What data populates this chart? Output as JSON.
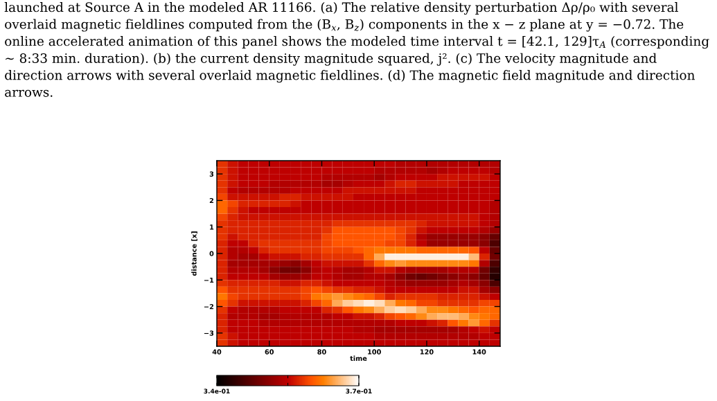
{
  "chart_data": {
    "type": "heatmap",
    "x": [
      42,
      46,
      50,
      54,
      58,
      62,
      66,
      70,
      74,
      78,
      82,
      86,
      90,
      94,
      98,
      102,
      106,
      110,
      114,
      118,
      122,
      126,
      130,
      134,
      138,
      142,
      146
    ],
    "y": [
      3.375,
      3.125,
      2.875,
      2.625,
      2.375,
      2.125,
      1.875,
      1.625,
      1.375,
      1.125,
      0.875,
      0.625,
      0.375,
      0.125,
      -0.125,
      -0.375,
      -0.625,
      -0.875,
      -1.125,
      -1.375,
      -1.625,
      -1.875,
      -2.125,
      -2.375,
      -2.625,
      -2.875,
      -3.125,
      -3.375
    ],
    "cells": [
      [
        0.358,
        0.356,
        0.355,
        0.355,
        0.355,
        0.355,
        0.355,
        0.355,
        0.355,
        0.355,
        0.355,
        0.355,
        0.355,
        0.355,
        0.355,
        0.355,
        0.355,
        0.354,
        0.354,
        0.354,
        0.354,
        0.354,
        0.354,
        0.354,
        0.354,
        0.354,
        0.354
      ],
      [
        0.358,
        0.356,
        0.355,
        0.355,
        0.355,
        0.355,
        0.355,
        0.355,
        0.355,
        0.355,
        0.355,
        0.355,
        0.355,
        0.355,
        0.355,
        0.354,
        0.354,
        0.354,
        0.354,
        0.354,
        0.353,
        0.354,
        0.355,
        0.355,
        0.355,
        0.355,
        0.354
      ],
      [
        0.358,
        0.356,
        0.355,
        0.355,
        0.355,
        0.355,
        0.355,
        0.355,
        0.355,
        0.355,
        0.354,
        0.354,
        0.354,
        0.354,
        0.354,
        0.353,
        0.354,
        0.355,
        0.355,
        0.355,
        0.355,
        0.356,
        0.356,
        0.356,
        0.356,
        0.356,
        0.355
      ],
      [
        0.358,
        0.356,
        0.355,
        0.355,
        0.355,
        0.354,
        0.354,
        0.354,
        0.354,
        0.354,
        0.353,
        0.353,
        0.354,
        0.355,
        0.355,
        0.355,
        0.356,
        0.357,
        0.357,
        0.356,
        0.356,
        0.356,
        0.356,
        0.355,
        0.355,
        0.355,
        0.355
      ],
      [
        0.358,
        0.355,
        0.354,
        0.354,
        0.354,
        0.354,
        0.354,
        0.355,
        0.355,
        0.355,
        0.355,
        0.355,
        0.356,
        0.356,
        0.356,
        0.356,
        0.356,
        0.356,
        0.356,
        0.355,
        0.355,
        0.355,
        0.355,
        0.355,
        0.355,
        0.355,
        0.355
      ],
      [
        0.359,
        0.356,
        0.356,
        0.356,
        0.356,
        0.356,
        0.357,
        0.357,
        0.356,
        0.356,
        0.356,
        0.356,
        0.356,
        0.355,
        0.355,
        0.355,
        0.355,
        0.355,
        0.355,
        0.355,
        0.355,
        0.355,
        0.355,
        0.355,
        0.355,
        0.355,
        0.355
      ],
      [
        0.361,
        0.359,
        0.357,
        0.357,
        0.357,
        0.357,
        0.357,
        0.356,
        0.355,
        0.355,
        0.355,
        0.355,
        0.355,
        0.355,
        0.355,
        0.355,
        0.355,
        0.355,
        0.355,
        0.355,
        0.355,
        0.355,
        0.355,
        0.355,
        0.355,
        0.355,
        0.354
      ],
      [
        0.361,
        0.358,
        0.356,
        0.355,
        0.355,
        0.355,
        0.355,
        0.355,
        0.355,
        0.355,
        0.355,
        0.355,
        0.355,
        0.355,
        0.355,
        0.355,
        0.355,
        0.355,
        0.355,
        0.355,
        0.355,
        0.355,
        0.355,
        0.355,
        0.355,
        0.355,
        0.354
      ],
      [
        0.359,
        0.357,
        0.356,
        0.356,
        0.356,
        0.356,
        0.356,
        0.356,
        0.356,
        0.356,
        0.356,
        0.356,
        0.356,
        0.356,
        0.356,
        0.356,
        0.356,
        0.356,
        0.356,
        0.356,
        0.356,
        0.356,
        0.356,
        0.356,
        0.356,
        0.355,
        0.354
      ],
      [
        0.358,
        0.357,
        0.357,
        0.357,
        0.357,
        0.357,
        0.357,
        0.357,
        0.357,
        0.357,
        0.357,
        0.358,
        0.358,
        0.358,
        0.358,
        0.358,
        0.358,
        0.358,
        0.358,
        0.357,
        0.356,
        0.356,
        0.356,
        0.356,
        0.356,
        0.355,
        0.354
      ],
      [
        0.358,
        0.357,
        0.357,
        0.357,
        0.357,
        0.357,
        0.357,
        0.357,
        0.357,
        0.357,
        0.358,
        0.36,
        0.36,
        0.36,
        0.36,
        0.36,
        0.36,
        0.359,
        0.358,
        0.356,
        0.355,
        0.355,
        0.355,
        0.355,
        0.355,
        0.354,
        0.352
      ],
      [
        0.358,
        0.356,
        0.357,
        0.357,
        0.357,
        0.357,
        0.357,
        0.357,
        0.357,
        0.357,
        0.359,
        0.36,
        0.36,
        0.36,
        0.36,
        0.36,
        0.36,
        0.359,
        0.357,
        0.354,
        0.352,
        0.352,
        0.352,
        0.352,
        0.352,
        0.351,
        0.348
      ],
      [
        0.357,
        0.355,
        0.355,
        0.357,
        0.358,
        0.358,
        0.358,
        0.358,
        0.358,
        0.358,
        0.359,
        0.36,
        0.36,
        0.36,
        0.36,
        0.36,
        0.359,
        0.359,
        0.357,
        0.355,
        0.352,
        0.352,
        0.352,
        0.352,
        0.352,
        0.351,
        0.346
      ],
      [
        0.357,
        0.354,
        0.354,
        0.355,
        0.357,
        0.358,
        0.358,
        0.358,
        0.358,
        0.358,
        0.359,
        0.359,
        0.359,
        0.36,
        0.361,
        0.362,
        0.362,
        0.362,
        0.362,
        0.361,
        0.361,
        0.361,
        0.361,
        0.361,
        0.36,
        0.355,
        0.348
      ],
      [
        0.357,
        0.354,
        0.353,
        0.353,
        0.355,
        0.356,
        0.356,
        0.356,
        0.357,
        0.357,
        0.358,
        0.358,
        0.358,
        0.358,
        0.361,
        0.365,
        0.369,
        0.369,
        0.369,
        0.369,
        0.369,
        0.369,
        0.369,
        0.369,
        0.366,
        0.357,
        0.349
      ],
      [
        0.357,
        0.353,
        0.353,
        0.353,
        0.353,
        0.353,
        0.352,
        0.351,
        0.353,
        0.355,
        0.356,
        0.356,
        0.356,
        0.356,
        0.358,
        0.361,
        0.363,
        0.364,
        0.363,
        0.363,
        0.363,
        0.363,
        0.363,
        0.363,
        0.362,
        0.354,
        0.346
      ],
      [
        0.357,
        0.354,
        0.354,
        0.354,
        0.353,
        0.351,
        0.349,
        0.349,
        0.351,
        0.354,
        0.355,
        0.354,
        0.353,
        0.353,
        0.354,
        0.356,
        0.356,
        0.354,
        0.353,
        0.353,
        0.353,
        0.353,
        0.354,
        0.354,
        0.354,
        0.349,
        0.344
      ],
      [
        0.357,
        0.355,
        0.355,
        0.355,
        0.355,
        0.353,
        0.352,
        0.352,
        0.353,
        0.355,
        0.355,
        0.354,
        0.353,
        0.353,
        0.354,
        0.354,
        0.353,
        0.351,
        0.349,
        0.348,
        0.349,
        0.35,
        0.351,
        0.352,
        0.351,
        0.348,
        0.343
      ],
      [
        0.358,
        0.357,
        0.357,
        0.357,
        0.357,
        0.357,
        0.356,
        0.356,
        0.357,
        0.357,
        0.356,
        0.355,
        0.355,
        0.355,
        0.355,
        0.355,
        0.354,
        0.353,
        0.352,
        0.352,
        0.352,
        0.352,
        0.353,
        0.354,
        0.353,
        0.351,
        0.346
      ],
      [
        0.36,
        0.358,
        0.358,
        0.358,
        0.358,
        0.358,
        0.358,
        0.358,
        0.359,
        0.36,
        0.359,
        0.358,
        0.358,
        0.357,
        0.357,
        0.356,
        0.355,
        0.355,
        0.355,
        0.355,
        0.355,
        0.355,
        0.355,
        0.356,
        0.356,
        0.353,
        0.351
      ],
      [
        0.362,
        0.359,
        0.358,
        0.358,
        0.358,
        0.358,
        0.358,
        0.358,
        0.359,
        0.362,
        0.363,
        0.364,
        0.363,
        0.362,
        0.361,
        0.359,
        0.357,
        0.358,
        0.358,
        0.358,
        0.358,
        0.357,
        0.357,
        0.357,
        0.357,
        0.356,
        0.355
      ],
      [
        0.36,
        0.358,
        0.356,
        0.356,
        0.356,
        0.356,
        0.356,
        0.356,
        0.357,
        0.359,
        0.361,
        0.365,
        0.367,
        0.368,
        0.369,
        0.368,
        0.365,
        0.362,
        0.361,
        0.359,
        0.359,
        0.358,
        0.358,
        0.358,
        0.358,
        0.359,
        0.359
      ],
      [
        0.358,
        0.355,
        0.354,
        0.354,
        0.354,
        0.354,
        0.355,
        0.355,
        0.355,
        0.355,
        0.357,
        0.358,
        0.36,
        0.362,
        0.363,
        0.365,
        0.367,
        0.368,
        0.367,
        0.365,
        0.363,
        0.363,
        0.362,
        0.361,
        0.36,
        0.361,
        0.361
      ],
      [
        0.357,
        0.354,
        0.354,
        0.354,
        0.353,
        0.353,
        0.354,
        0.354,
        0.354,
        0.354,
        0.354,
        0.355,
        0.355,
        0.356,
        0.356,
        0.357,
        0.359,
        0.36,
        0.361,
        0.363,
        0.365,
        0.366,
        0.366,
        0.365,
        0.363,
        0.362,
        0.361
      ],
      [
        0.357,
        0.355,
        0.355,
        0.355,
        0.354,
        0.354,
        0.354,
        0.354,
        0.354,
        0.354,
        0.354,
        0.354,
        0.354,
        0.354,
        0.354,
        0.354,
        0.354,
        0.355,
        0.355,
        0.355,
        0.356,
        0.357,
        0.36,
        0.362,
        0.364,
        0.361,
        0.358
      ],
      [
        0.357,
        0.355,
        0.355,
        0.355,
        0.355,
        0.355,
        0.355,
        0.355,
        0.355,
        0.355,
        0.355,
        0.355,
        0.355,
        0.354,
        0.354,
        0.353,
        0.353,
        0.353,
        0.353,
        0.353,
        0.353,
        0.353,
        0.353,
        0.354,
        0.355,
        0.356,
        0.355
      ],
      [
        0.358,
        0.356,
        0.355,
        0.355,
        0.355,
        0.355,
        0.355,
        0.355,
        0.355,
        0.355,
        0.355,
        0.355,
        0.355,
        0.355,
        0.355,
        0.354,
        0.354,
        0.354,
        0.354,
        0.354,
        0.354,
        0.354,
        0.354,
        0.354,
        0.354,
        0.355,
        0.355
      ],
      [
        0.358,
        0.356,
        0.355,
        0.355,
        0.355,
        0.355,
        0.355,
        0.355,
        0.355,
        0.355,
        0.355,
        0.355,
        0.355,
        0.355,
        0.355,
        0.355,
        0.355,
        0.355,
        0.355,
        0.355,
        0.355,
        0.355,
        0.355,
        0.355,
        0.355,
        0.355,
        0.355
      ]
    ],
    "xlim": [
      40,
      148
    ],
    "ylim": [
      -3.5,
      3.5
    ],
    "xticks": [
      40,
      60,
      80,
      100,
      120,
      140
    ],
    "yticks": [
      -3,
      -2,
      -1,
      0,
      1,
      2,
      3
    ],
    "xlabel": "time",
    "ylabel": "distance [x]",
    "clim": [
      0.34,
      0.37
    ],
    "cticks": [
      {
        "value": 0.34,
        "label": "3.4e-01"
      },
      {
        "value": 0.355,
        "label": null
      },
      {
        "value": 0.37,
        "label": "3.7e-01"
      }
    ],
    "annotations": [
      "launched at Source A in the modeled AR 11166. (a) The relative density perturbation Δρ/ρ₀ with several overlaid magnetic fieldlines computed from the (B$_{x}$, B$_{z}$) components in the x − z plane at y = −0.72. The online accelerated animation of this panel shows the modeled time interval t = [42.1, 129]τ$_{A}$ (corresponding ∼ 8:33 min. duration). (b) the current density magnitude squared, j². (c) The velocity magnitude and direction arrows with several overlaid magnetic fieldlines. (d) The magnetic field magnitude and direction arrows."
    ]
  }
}
